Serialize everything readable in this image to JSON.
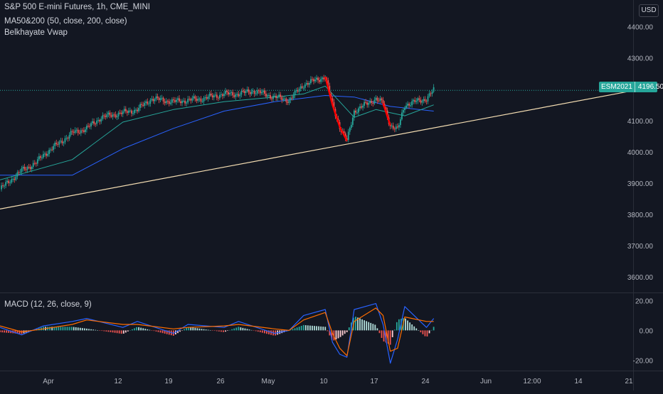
{
  "header": {
    "title": "S&P 500 E-mini Futures, 1h, CME_MINI",
    "indicator_ma": "MA50&200 (50, close, 200, close)",
    "indicator_vwap": "Belkhayate Vwap",
    "macd_label": "MACD (12, 26, close, 9)",
    "currency": "USD"
  },
  "price_tag": {
    "symbol": "ESM2021",
    "value": "4196.50"
  },
  "colors": {
    "background": "#131722",
    "up": "#26a69a",
    "down": "#ef5350",
    "accent_red": "#ff0000",
    "ma_fast": "#26a69a",
    "ma_slow": "#2962ff",
    "trendline": "#f5deb3",
    "macd_line": "#2962ff",
    "signal_line": "#ff6d00",
    "grid": "#1e222d",
    "axis_text": "#b2b5be"
  },
  "chart_data": [
    {
      "type": "line",
      "title": "S&P 500 E-mini Futures, 1h, CME_MINI",
      "price_axis": {
        "ylim": [
          3550,
          4440
        ],
        "ticks": [
          "4400.00",
          "4300.00",
          "4200.00",
          "4100.00",
          "4000.00",
          "3900.00",
          "3800.00",
          "3700.00",
          "3600.00"
        ]
      },
      "time_axis": {
        "labels": [
          "Apr",
          "12",
          "19",
          "26",
          "May",
          "10",
          "17",
          "24",
          "Jun",
          "12:00",
          "14",
          "21"
        ]
      },
      "series": [
        {
          "name": "ESM2021",
          "x": [
            "Mar 26",
            "Mar 29",
            "Mar 31",
            "Apr 1",
            "Apr 5",
            "Apr 7",
            "Apr 9",
            "Apr 12",
            "Apr 14",
            "Apr 16",
            "Apr 19",
            "Apr 21",
            "Apr 23",
            "Apr 26",
            "Apr 28",
            "Apr 30",
            "May 3",
            "May 5",
            "May 7",
            "May 10",
            "May 11",
            "May 12",
            "May 13",
            "May 14",
            "May 17",
            "May 18",
            "May 19",
            "May 20",
            "May 21",
            "May 24",
            "May 25"
          ],
          "values": [
            3880,
            3940,
            3965,
            3990,
            4060,
            4075,
            4110,
            4125,
            4135,
            4170,
            4160,
            4165,
            4170,
            4185,
            4185,
            4195,
            4175,
            4165,
            4215,
            4240,
            4150,
            4080,
            4035,
            4130,
            4170,
            4155,
            4085,
            4070,
            4150,
            4170,
            4196.5
          ]
        },
        {
          "name": "MA 50",
          "x": [
            "Mar 26",
            "Apr 5",
            "Apr 12",
            "Apr 19",
            "Apr 26",
            "May 3",
            "May 7",
            "May 10",
            "May 12",
            "May 14",
            "May 17",
            "May 19",
            "May 21",
            "May 25"
          ],
          "values": [
            3910,
            3975,
            4095,
            4135,
            4160,
            4175,
            4185,
            4210,
            4160,
            4110,
            4135,
            4125,
            4115,
            4150
          ]
        },
        {
          "name": "MA 200",
          "x": [
            "Mar 26",
            "Apr 5",
            "Apr 12",
            "Apr 19",
            "Apr 26",
            "May 3",
            "May 10",
            "May 14",
            "May 19",
            "May 25"
          ],
          "values": [
            3925,
            3925,
            4010,
            4075,
            4130,
            4160,
            4180,
            4175,
            4145,
            4130
          ]
        },
        {
          "name": "Trendline",
          "x": [
            "Mar 26",
            "Jun 21"
          ],
          "values": [
            3817,
            4193
          ]
        }
      ]
    },
    {
      "type": "line",
      "title": "MACD (12, 26, close, 9)",
      "ylim": [
        -26,
        24
      ],
      "ticks": [
        "20.00",
        "0.00",
        "-20.00"
      ],
      "series": [
        {
          "name": "MACD",
          "x": [
            "Mar 26",
            "Mar 29",
            "Apr 1",
            "Apr 5",
            "Apr 7",
            "Apr 12",
            "Apr 14",
            "Apr 19",
            "Apr 21",
            "Apr 26",
            "Apr 28",
            "May 3",
            "May 5",
            "May 7",
            "May 10",
            "May 11",
            "May 12",
            "May 13",
            "May 14",
            "May 17",
            "May 18",
            "May 19",
            "May 20",
            "May 21",
            "May 24",
            "May 25"
          ],
          "values": [
            2,
            -3,
            3,
            6,
            8,
            2,
            6,
            -2,
            4,
            2,
            6,
            -2,
            0,
            10,
            14,
            -8,
            -16,
            -18,
            14,
            18,
            4,
            -22,
            -6,
            16,
            2,
            8
          ]
        },
        {
          "name": "Signal",
          "x": [
            "Mar 26",
            "Mar 29",
            "Apr 1",
            "Apr 5",
            "Apr 7",
            "Apr 12",
            "Apr 14",
            "Apr 19",
            "Apr 21",
            "Apr 26",
            "Apr 28",
            "May 3",
            "May 5",
            "May 7",
            "May 10",
            "May 11",
            "May 12",
            "May 13",
            "May 14",
            "May 17",
            "May 18",
            "May 19",
            "May 20",
            "May 21",
            "May 24",
            "May 25"
          ],
          "values": [
            3,
            -1,
            1,
            4,
            7,
            4,
            4,
            1,
            2,
            3,
            4,
            1,
            0,
            7,
            12,
            -2,
            -12,
            -17,
            6,
            15,
            10,
            -14,
            -12,
            9,
            6,
            6
          ]
        }
      ]
    }
  ]
}
